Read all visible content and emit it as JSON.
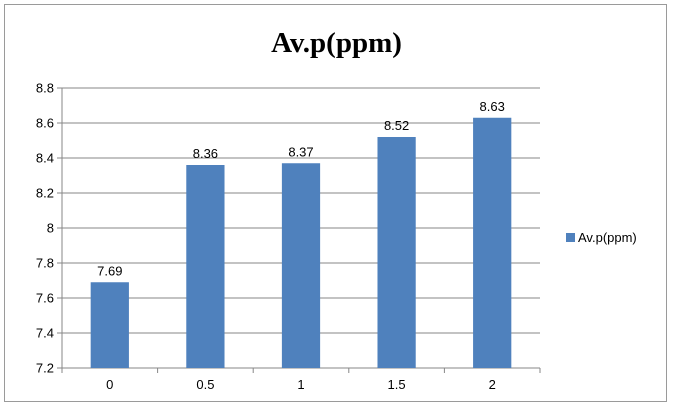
{
  "chart_data": {
    "type": "bar",
    "title": "Av.p(ppm)",
    "categories": [
      "0",
      "0.5",
      "1",
      "1.5",
      "2"
    ],
    "series": [
      {
        "name": "Av.p(ppm)",
        "values": [
          7.69,
          8.36,
          8.37,
          8.52,
          8.63
        ],
        "color": "#4f81bd"
      }
    ],
    "data_labels": [
      "7.69",
      "8.36",
      "8.37",
      "8.52",
      "8.63"
    ],
    "ylim": [
      7.2,
      8.8
    ],
    "yticks": [
      "7.2",
      "7.4",
      "7.6",
      "7.8",
      "8",
      "8.2",
      "8.4",
      "8.6",
      "8.8"
    ],
    "grid": true,
    "legend": "right"
  }
}
